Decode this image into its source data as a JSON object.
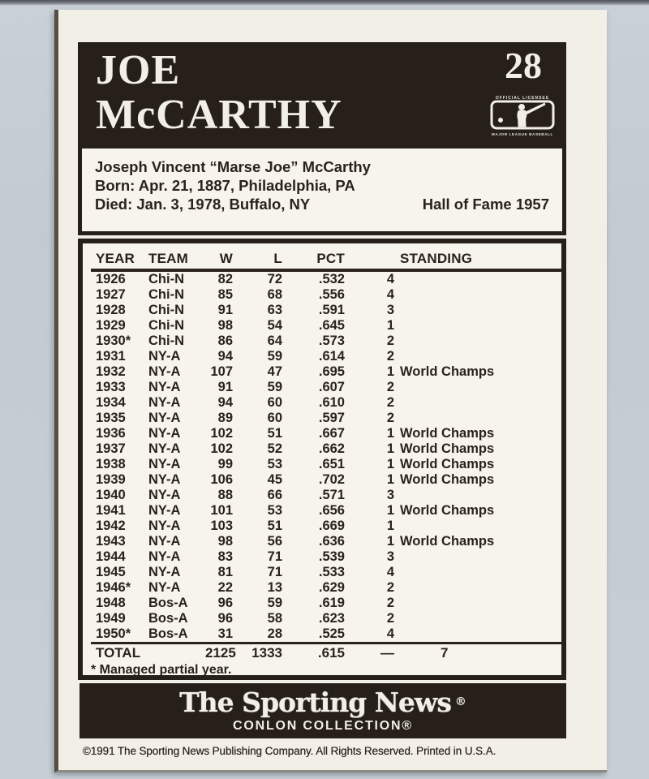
{
  "card": {
    "player_name": "JOE\nMcCARTHY",
    "card_number": "28",
    "mlb_logo": {
      "top_text": "OFFICIAL LICENSEE",
      "bottom_text": "MAJOR LEAGUE BASEBALL",
      "icon": "mlb-batter-logo"
    },
    "bio": {
      "full_name": "Joseph Vincent “Marse Joe” McCarthy",
      "born": "Born: Apr. 21, 1887, Philadelphia, PA",
      "died": "Died: Jan. 3, 1978, Buffalo, NY",
      "hall_of_fame": "Hall of Fame 1957"
    },
    "stats": {
      "columns": [
        "YEAR",
        "TEAM",
        "W",
        "L",
        "PCT",
        "STANDING"
      ],
      "rows": [
        {
          "year": "1926",
          "team": "Chi-N",
          "w": "82",
          "l": "72",
          "pct": ".532",
          "standing": "4",
          "note": ""
        },
        {
          "year": "1927",
          "team": "Chi-N",
          "w": "85",
          "l": "68",
          "pct": ".556",
          "standing": "4",
          "note": ""
        },
        {
          "year": "1928",
          "team": "Chi-N",
          "w": "91",
          "l": "63",
          "pct": ".591",
          "standing": "3",
          "note": ""
        },
        {
          "year": "1929",
          "team": "Chi-N",
          "w": "98",
          "l": "54",
          "pct": ".645",
          "standing": "1",
          "note": ""
        },
        {
          "year": "1930*",
          "team": "Chi-N",
          "w": "86",
          "l": "64",
          "pct": ".573",
          "standing": "2",
          "note": ""
        },
        {
          "year": "1931",
          "team": "NY-A",
          "w": "94",
          "l": "59",
          "pct": ".614",
          "standing": "2",
          "note": ""
        },
        {
          "year": "1932",
          "team": "NY-A",
          "w": "107",
          "l": "47",
          "pct": ".695",
          "standing": "1",
          "note": "World Champs"
        },
        {
          "year": "1933",
          "team": "NY-A",
          "w": "91",
          "l": "59",
          "pct": ".607",
          "standing": "2",
          "note": ""
        },
        {
          "year": "1934",
          "team": "NY-A",
          "w": "94",
          "l": "60",
          "pct": ".610",
          "standing": "2",
          "note": ""
        },
        {
          "year": "1935",
          "team": "NY-A",
          "w": "89",
          "l": "60",
          "pct": ".597",
          "standing": "2",
          "note": ""
        },
        {
          "year": "1936",
          "team": "NY-A",
          "w": "102",
          "l": "51",
          "pct": ".667",
          "standing": "1",
          "note": "World Champs"
        },
        {
          "year": "1937",
          "team": "NY-A",
          "w": "102",
          "l": "52",
          "pct": ".662",
          "standing": "1",
          "note": "World Champs"
        },
        {
          "year": "1938",
          "team": "NY-A",
          "w": "99",
          "l": "53",
          "pct": ".651",
          "standing": "1",
          "note": "World Champs"
        },
        {
          "year": "1939",
          "team": "NY-A",
          "w": "106",
          "l": "45",
          "pct": ".702",
          "standing": "1",
          "note": "World Champs"
        },
        {
          "year": "1940",
          "team": "NY-A",
          "w": "88",
          "l": "66",
          "pct": ".571",
          "standing": "3",
          "note": ""
        },
        {
          "year": "1941",
          "team": "NY-A",
          "w": "101",
          "l": "53",
          "pct": ".656",
          "standing": "1",
          "note": "World Champs"
        },
        {
          "year": "1942",
          "team": "NY-A",
          "w": "103",
          "l": "51",
          "pct": ".669",
          "standing": "1",
          "note": ""
        },
        {
          "year": "1943",
          "team": "NY-A",
          "w": "98",
          "l": "56",
          "pct": ".636",
          "standing": "1",
          "note": "World Champs"
        },
        {
          "year": "1944",
          "team": "NY-A",
          "w": "83",
          "l": "71",
          "pct": ".539",
          "standing": "3",
          "note": ""
        },
        {
          "year": "1945",
          "team": "NY-A",
          "w": "81",
          "l": "71",
          "pct": ".533",
          "standing": "4",
          "note": ""
        },
        {
          "year": "1946*",
          "team": "NY-A",
          "w": "22",
          "l": "13",
          "pct": ".629",
          "standing": "2",
          "note": ""
        },
        {
          "year": "1948",
          "team": "Bos-A",
          "w": "96",
          "l": "59",
          "pct": ".619",
          "standing": "2",
          "note": ""
        },
        {
          "year": "1949",
          "team": "Bos-A",
          "w": "96",
          "l": "58",
          "pct": ".623",
          "standing": "2",
          "note": ""
        },
        {
          "year": "1950*",
          "team": "Bos-A",
          "w": "31",
          "l": "28",
          "pct": ".525",
          "standing": "4",
          "note": ""
        }
      ],
      "total": {
        "label": "TOTAL",
        "w": "2125",
        "l": "1333",
        "pct": ".615",
        "standing": "—",
        "championships": "7"
      },
      "footnote": "* Managed partial year."
    },
    "footer": {
      "brand": "The Sporting News",
      "brand_reg": "®",
      "collection": "CONLON COLLECTION®",
      "copyright": "©1991 The Sporting News Publishing Company. All Rights Reserved. Printed in U.S.A."
    },
    "colors": {
      "page_bg": "#c3cad2",
      "card_bg": "#f2efe6",
      "panel_bg": "#f7f4ec",
      "ink_black": "#261f1a",
      "text_dark": "#2a231d",
      "text_light": "#f2efe7"
    }
  }
}
